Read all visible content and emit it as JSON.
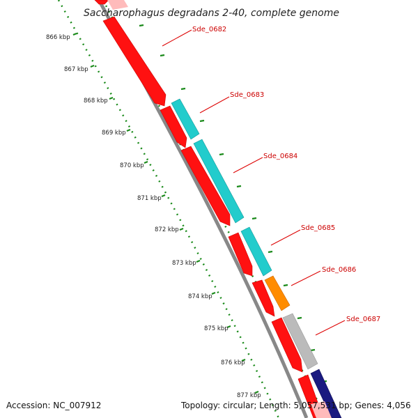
{
  "title": "Saccharophagus degradans 2-40, complete genome",
  "accession": "Accession: NC_007912",
  "summary": "Topology: circular; Length: 5,057,531 bp; Genes: 4,056",
  "tick_labels": [
    "866 kbp",
    "867 kbp",
    "868 kbp",
    "869 kbp",
    "870 kbp",
    "871 kbp",
    "872 kbp",
    "873 kbp",
    "874 kbp",
    "875 kbp",
    "876 kbp",
    "877 kbp"
  ],
  "gene_labels": [
    "Sde_0682",
    "Sde_0683",
    "Sde_0684",
    "Sde_0685",
    "Sde_0686",
    "Sde_0687"
  ],
  "colors": {
    "backbone": "#888888",
    "scale_dots": "#1a8a1a",
    "cds": "#ff1111",
    "rrna_like": "#22cccc",
    "orange_feature": "#ff8c00",
    "grey_feature": "#bbbbbb",
    "navy_feature": "#1a1a80",
    "label_line": "#dd0000"
  }
}
